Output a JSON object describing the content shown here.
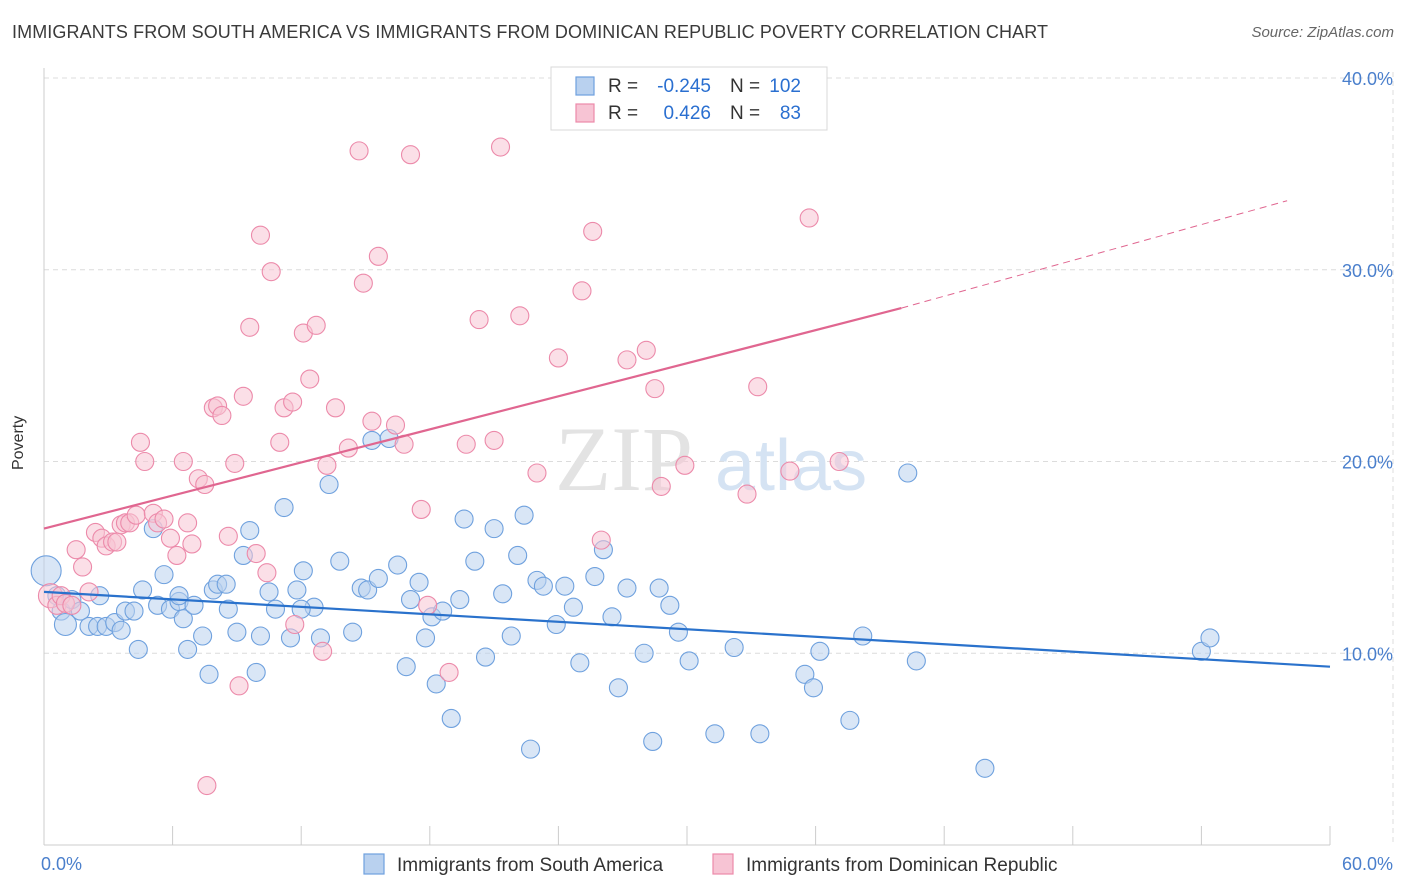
{
  "chart_data": {
    "type": "scatter",
    "title": "IMMIGRANTS FROM SOUTH AMERICA VS IMMIGRANTS FROM DOMINICAN REPUBLIC POVERTY CORRELATION CHART",
    "source": "Source: ZipAtlas.com",
    "xlabel": "",
    "ylabel": "Poverty",
    "xlim": [
      0,
      60
    ],
    "ylim": [
      0,
      40
    ],
    "x_tick_labels": [
      "0.0%",
      "60.0%"
    ],
    "y_tick_labels": [
      "10.0%",
      "20.0%",
      "30.0%",
      "40.0%"
    ],
    "y_ticks": [
      10,
      20,
      30,
      40
    ],
    "watermark": "ZIPatlas",
    "legend_stats": [
      {
        "r_label": "R =",
        "r_value": "-0.245",
        "n_label": "N =",
        "n_value": "102"
      },
      {
        "r_label": "R =",
        "r_value": "0.426",
        "n_label": "N =",
        "n_value": "83"
      }
    ],
    "series": [
      {
        "name": "Immigrants from South America",
        "color": "#6fa1de",
        "fill": "#b9d1ef",
        "trend_color": "#2a72cc",
        "trend": {
          "x0": 0,
          "y0": 13.2,
          "x1": 60,
          "y1": 9.3
        },
        "points": [
          [
            0.1,
            14.3
          ],
          [
            0.6,
            13.0
          ],
          [
            0.8,
            12.2
          ],
          [
            1.0,
            11.5
          ],
          [
            1.3,
            12.8
          ],
          [
            1.7,
            12.2
          ],
          [
            2.1,
            11.4
          ],
          [
            2.5,
            11.4
          ],
          [
            2.6,
            13.0
          ],
          [
            2.9,
            11.4
          ],
          [
            3.3,
            11.6
          ],
          [
            3.6,
            11.2
          ],
          [
            3.8,
            12.2
          ],
          [
            4.2,
            12.2
          ],
          [
            4.4,
            10.2
          ],
          [
            5.1,
            16.5
          ],
          [
            5.3,
            12.5
          ],
          [
            5.6,
            14.1
          ],
          [
            5.9,
            12.3
          ],
          [
            6.3,
            12.7
          ],
          [
            6.5,
            11.8
          ],
          [
            6.7,
            10.2
          ],
          [
            7.0,
            12.5
          ],
          [
            7.4,
            10.9
          ],
          [
            7.7,
            8.9
          ],
          [
            7.9,
            13.3
          ],
          [
            8.1,
            13.6
          ],
          [
            8.5,
            13.6
          ],
          [
            8.6,
            12.3
          ],
          [
            9.0,
            11.1
          ],
          [
            9.3,
            15.1
          ],
          [
            9.6,
            16.4
          ],
          [
            9.9,
            9.0
          ],
          [
            10.1,
            10.9
          ],
          [
            10.5,
            13.2
          ],
          [
            10.8,
            12.3
          ],
          [
            11.2,
            17.6
          ],
          [
            11.5,
            10.8
          ],
          [
            11.8,
            13.3
          ],
          [
            12.1,
            14.3
          ],
          [
            12.6,
            12.4
          ],
          [
            12.9,
            10.8
          ],
          [
            13.3,
            18.8
          ],
          [
            13.8,
            14.8
          ],
          [
            14.4,
            11.1
          ],
          [
            14.8,
            13.4
          ],
          [
            15.1,
            13.3
          ],
          [
            15.3,
            21.1
          ],
          [
            15.6,
            13.9
          ],
          [
            16.1,
            21.2
          ],
          [
            16.5,
            14.6
          ],
          [
            16.9,
            9.3
          ],
          [
            17.1,
            12.8
          ],
          [
            17.5,
            13.7
          ],
          [
            17.8,
            10.8
          ],
          [
            18.1,
            11.9
          ],
          [
            18.3,
            8.4
          ],
          [
            18.6,
            12.2
          ],
          [
            19.0,
            6.6
          ],
          [
            19.4,
            12.8
          ],
          [
            19.6,
            17.0
          ],
          [
            20.1,
            14.8
          ],
          [
            20.6,
            9.8
          ],
          [
            21.0,
            16.5
          ],
          [
            21.4,
            13.1
          ],
          [
            21.8,
            10.9
          ],
          [
            22.1,
            15.1
          ],
          [
            22.4,
            17.2
          ],
          [
            22.7,
            5.0
          ],
          [
            23.0,
            13.8
          ],
          [
            23.3,
            13.5
          ],
          [
            23.9,
            11.5
          ],
          [
            24.3,
            13.5
          ],
          [
            24.7,
            12.4
          ],
          [
            25.0,
            9.5
          ],
          [
            25.7,
            14.0
          ],
          [
            26.1,
            15.4
          ],
          [
            26.5,
            11.9
          ],
          [
            26.8,
            8.2
          ],
          [
            27.2,
            13.4
          ],
          [
            28.0,
            10.0
          ],
          [
            28.4,
            5.4
          ],
          [
            28.7,
            13.4
          ],
          [
            29.2,
            12.5
          ],
          [
            29.6,
            11.1
          ],
          [
            30.1,
            9.6
          ],
          [
            31.3,
            5.8
          ],
          [
            32.2,
            10.3
          ],
          [
            33.4,
            5.8
          ],
          [
            35.5,
            8.9
          ],
          [
            35.9,
            8.2
          ],
          [
            36.2,
            10.1
          ],
          [
            37.6,
            6.5
          ],
          [
            38.2,
            10.9
          ],
          [
            40.3,
            19.4
          ],
          [
            40.7,
            9.6
          ],
          [
            43.9,
            4.0
          ],
          [
            54.0,
            10.1
          ],
          [
            54.4,
            10.8
          ],
          [
            6.3,
            13.0
          ],
          [
            4.6,
            13.3
          ],
          [
            12.0,
            12.3
          ]
        ]
      },
      {
        "name": "Immigrants from Dominican Republic",
        "color": "#ec8aaa",
        "fill": "#f7c4d4",
        "trend_color": "#e06690",
        "trend": {
          "x0": 0,
          "y0": 16.5,
          "x1": 40,
          "y1": 28.0
        },
        "trend_dash": {
          "x0": 40,
          "y0": 28.0,
          "x1": 58,
          "y1": 33.6
        },
        "points": [
          [
            0.3,
            13.0
          ],
          [
            0.6,
            12.5
          ],
          [
            0.8,
            13.0
          ],
          [
            1.0,
            12.6
          ],
          [
            1.3,
            12.5
          ],
          [
            1.5,
            15.4
          ],
          [
            1.8,
            14.5
          ],
          [
            2.1,
            13.2
          ],
          [
            2.4,
            16.3
          ],
          [
            2.7,
            16.0
          ],
          [
            2.9,
            15.6
          ],
          [
            3.2,
            15.8
          ],
          [
            3.4,
            15.8
          ],
          [
            3.6,
            16.7
          ],
          [
            3.8,
            16.8
          ],
          [
            4.0,
            16.8
          ],
          [
            4.3,
            17.2
          ],
          [
            4.5,
            21.0
          ],
          [
            4.7,
            20.0
          ],
          [
            5.1,
            17.3
          ],
          [
            5.3,
            16.8
          ],
          [
            5.6,
            17.0
          ],
          [
            5.9,
            16.0
          ],
          [
            6.2,
            15.1
          ],
          [
            6.5,
            20.0
          ],
          [
            6.7,
            16.8
          ],
          [
            6.9,
            15.7
          ],
          [
            7.2,
            19.1
          ],
          [
            7.5,
            18.8
          ],
          [
            7.6,
            3.1
          ],
          [
            7.9,
            22.8
          ],
          [
            8.1,
            22.9
          ],
          [
            8.3,
            22.4
          ],
          [
            8.6,
            16.1
          ],
          [
            8.9,
            19.9
          ],
          [
            9.1,
            8.3
          ],
          [
            9.3,
            23.4
          ],
          [
            9.6,
            27.0
          ],
          [
            9.9,
            15.2
          ],
          [
            10.1,
            31.8
          ],
          [
            10.4,
            14.2
          ],
          [
            10.6,
            29.9
          ],
          [
            11.0,
            21.0
          ],
          [
            11.2,
            22.8
          ],
          [
            11.6,
            23.1
          ],
          [
            11.7,
            11.5
          ],
          [
            12.1,
            26.7
          ],
          [
            12.4,
            24.3
          ],
          [
            12.7,
            27.1
          ],
          [
            13.0,
            10.1
          ],
          [
            13.2,
            19.8
          ],
          [
            13.6,
            22.8
          ],
          [
            14.2,
            20.7
          ],
          [
            14.7,
            36.2
          ],
          [
            14.9,
            29.3
          ],
          [
            15.3,
            22.1
          ],
          [
            15.6,
            30.7
          ],
          [
            16.4,
            21.9
          ],
          [
            16.8,
            20.9
          ],
          [
            17.1,
            36.0
          ],
          [
            17.6,
            17.5
          ],
          [
            17.9,
            12.5
          ],
          [
            18.9,
            9.0
          ],
          [
            19.7,
            20.9
          ],
          [
            20.3,
            27.4
          ],
          [
            21.0,
            21.1
          ],
          [
            21.3,
            36.4
          ],
          [
            22.2,
            27.6
          ],
          [
            23.0,
            19.4
          ],
          [
            24.0,
            25.4
          ],
          [
            25.1,
            28.9
          ],
          [
            25.6,
            32.0
          ],
          [
            26.0,
            15.9
          ],
          [
            27.2,
            25.3
          ],
          [
            28.1,
            25.8
          ],
          [
            28.5,
            23.8
          ],
          [
            28.8,
            18.7
          ],
          [
            29.9,
            19.8
          ],
          [
            32.8,
            18.3
          ],
          [
            33.3,
            23.9
          ],
          [
            34.8,
            19.5
          ],
          [
            35.7,
            32.7
          ],
          [
            37.1,
            20.0
          ]
        ]
      }
    ]
  }
}
